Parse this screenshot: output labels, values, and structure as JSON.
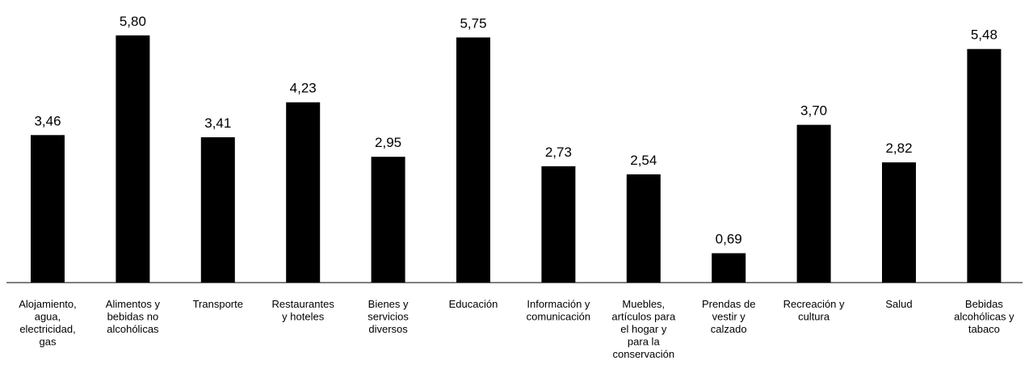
{
  "chart_data": {
    "type": "bar",
    "title": "",
    "xlabel": "",
    "ylabel": "",
    "ylim": [
      0,
      6.0
    ],
    "grid": false,
    "legend": "none",
    "bar_color": "#000000",
    "categories": [
      "Alojamiento, agua, electricidad, gas",
      "Alimentos y bebidas no alcohólicas",
      "Transporte",
      "Restaurantes y hoteles",
      "Bienes y servicios diversos",
      "Educación",
      "Información y comunicación",
      "Muebles, artículos para el hogar y para la conservación",
      "Prendas de vestir y calzado",
      "Recreación y cultura",
      "Salud",
      "Bebidas alcohólicas y tabaco"
    ],
    "category_lines": [
      [
        "Alojamiento,",
        "agua,",
        "electricidad,",
        "gas"
      ],
      [
        "Alimentos y",
        "bebidas no",
        "alcohólicas"
      ],
      [
        "Transporte"
      ],
      [
        "Restaurantes",
        "y hoteles"
      ],
      [
        "Bienes y",
        "servicios",
        "diversos"
      ],
      [
        "Educación"
      ],
      [
        "Información y",
        "comunicación"
      ],
      [
        "Muebles,",
        "artículos para",
        "el hogar y",
        "para la",
        "conservación"
      ],
      [
        "Prendas de",
        "vestir y",
        "calzado"
      ],
      [
        "Recreación y",
        "cultura"
      ],
      [
        "Salud"
      ],
      [
        "Bebidas",
        "alcohólicas y",
        "tabaco"
      ]
    ],
    "values": [
      3.46,
      5.8,
      3.41,
      4.23,
      2.95,
      5.75,
      2.73,
      2.54,
      0.69,
      3.7,
      2.82,
      5.48
    ],
    "value_labels": [
      "3,46",
      "5,80",
      "3,41",
      "4,23",
      "2,95",
      "5,75",
      "2,73",
      "2,54",
      "0,69",
      "3,70",
      "2,82",
      "5,48"
    ]
  }
}
